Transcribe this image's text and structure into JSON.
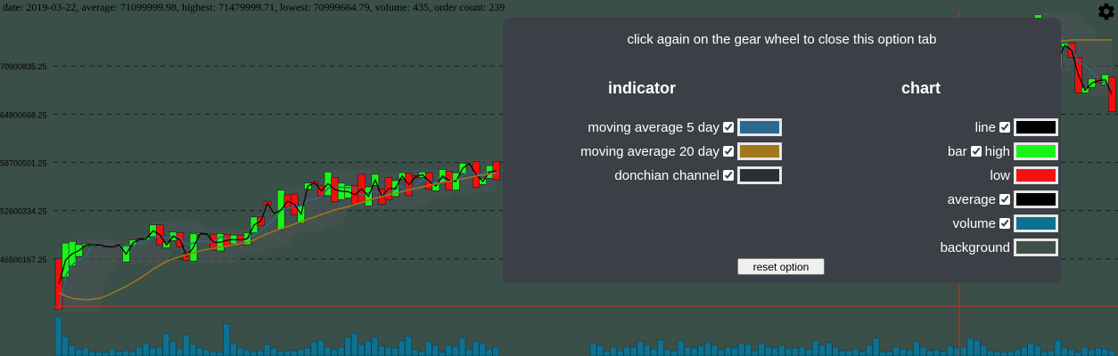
{
  "info_line": "date: 2019-03-22, average: 71099999.98, highest: 71479999.71, lowest: 70999664.79, volume: 435, order count: 239",
  "panel": {
    "title": "click again on the gear wheel to close this option tab",
    "indicator_heading": "indicator",
    "chart_heading": "chart",
    "indicators": [
      {
        "label": "moving average 5 day",
        "checked": true,
        "color": "#2a6a8c"
      },
      {
        "label": "moving average 20 day",
        "checked": true,
        "color": "#a0781e"
      },
      {
        "label": "donchian channel",
        "checked": true,
        "color": "#2b2f33"
      }
    ],
    "chart_options": [
      {
        "label": "line",
        "has_checkbox": true,
        "checked": true,
        "color": "#000000"
      },
      {
        "label": "bar",
        "has_checkbox": true,
        "checked": true,
        "sub_label": "high",
        "color": "#17f317"
      },
      {
        "label": "low",
        "has_checkbox": false,
        "color": "#f31111"
      },
      {
        "label": "average",
        "has_checkbox": true,
        "checked": true,
        "color": "#000000"
      },
      {
        "label": "volume",
        "has_checkbox": true,
        "checked": true,
        "color": "#0e7192"
      },
      {
        "label": "background",
        "has_checkbox": false,
        "color": "#3e4f48"
      }
    ],
    "reset_label": "reset option"
  },
  "colors": {
    "background": "#3a4f47",
    "up": "#1af21a",
    "down": "#f20f0f",
    "volume": "#0e7192",
    "ma5": "#2a6a8c",
    "ma20": "#a0781e",
    "donchian": "#4b5456",
    "crosshair": "#d42a1a",
    "grid": "#15201c"
  },
  "chart_data": {
    "type": "candlestick",
    "y_ticks": [
      "70900835.25",
      "64800668.25",
      "58700501.25",
      "52600334.25",
      "46500167.25"
    ],
    "y_tick_values": [
      70900835.25,
      64800668.25,
      58700501.25,
      52600334.25,
      46500167.25
    ],
    "ylim": [
      40400000,
      77000000
    ],
    "candles_left": [
      [
        46.5,
        40.1
      ],
      [
        44.2,
        48.5
      ],
      [
        45.6,
        48.7
      ],
      [
        46.8,
        48.3
      ],
      [
        48.1,
        48.4
      ],
      [
        48.3,
        48.3
      ],
      [
        48.4,
        48.2
      ],
      [
        48.2,
        48.0
      ],
      [
        48.1,
        48.0
      ],
      [
        48.2,
        48.3
      ],
      [
        46.1,
        48.1
      ],
      [
        48.1,
        48.9
      ],
      [
        49.1,
        48.9
      ],
      [
        48.9,
        49.2
      ],
      [
        49.3,
        50.8
      ],
      [
        50.8,
        48.3
      ],
      [
        47.9,
        48.6
      ],
      [
        48.8,
        49.9
      ],
      [
        49.8,
        48.0
      ],
      [
        47.3,
        46.3
      ],
      [
        46.2,
        49.7
      ],
      [
        49.6,
        49.8
      ],
      [
        49.6,
        49.7
      ],
      [
        49.6,
        47.6
      ],
      [
        47.5,
        49.7
      ],
      [
        49.6,
        48.1
      ],
      [
        48.4,
        49.5
      ],
      [
        49.5,
        48.3
      ],
      [
        48.3,
        49.8
      ],
      [
        49.8,
        51.8
      ],
      [
        51.8,
        50.7
      ],
      [
        53.8,
        53.3
      ],
      [
        52.1,
        52.3
      ],
      [
        50.2,
        55.2
      ],
      [
        54.6,
        53.0
      ],
      [
        54.7,
        52.1
      ],
      [
        51.0,
        53.3
      ],
      [
        55.3,
        56.1
      ],
      [
        56.3,
        56.0
      ],
      [
        55.8,
        54.4
      ],
      [
        54.5,
        57.5
      ],
      [
        56.8,
        53.7
      ],
      [
        54.0,
        56.1
      ],
      [
        54.2,
        55.8
      ],
      [
        55.8,
        53.4
      ],
      [
        57.2,
        53.5
      ],
      [
        53.2,
        55.6
      ],
      [
        55.8,
        57.2
      ],
      [
        55.3,
        53.4
      ],
      [
        56.8,
        54.0
      ],
      [
        54.4,
        56.4
      ],
      [
        56.6,
        57.4
      ],
      [
        57.3,
        54.5
      ],
      [
        57.0,
        56.8
      ],
      [
        56.8,
        57.5
      ],
      [
        57.4,
        55.3
      ],
      [
        55.1,
        56.3
      ],
      [
        56.2,
        57.8
      ],
      [
        57.6,
        55.2
      ],
      [
        55.2,
        57.4
      ],
      [
        57.3,
        58.6
      ],
      [
        58.6,
        58.6
      ],
      [
        58.8,
        55.5
      ],
      [
        55.9,
        56.7
      ],
      [
        56.7,
        58.3
      ],
      [
        58.8,
        56.5
      ]
    ],
    "candles_right": [
      [
        71.0,
        68.7
      ],
      [
        68.6,
        66.2
      ],
      [
        66.4,
        72.1
      ],
      [
        72.3,
        72.9
      ],
      [
        72.9,
        69.4
      ],
      [
        69.2,
        73.0
      ],
      [
        74.1,
        67.3
      ],
      [
        67.2,
        74.0
      ],
      [
        74.0,
        74.6
      ],
      [
        74.6,
        70.1
      ],
      [
        70.1,
        71.9
      ],
      [
        71.9,
        68.2
      ],
      [
        68.1,
        74.1
      ],
      [
        74.8,
        70.9
      ],
      [
        70.9,
        67.9
      ],
      [
        67.9,
        71.1
      ],
      [
        71.0,
        68.2
      ],
      [
        68.3,
        71.5
      ],
      [
        71.5,
        70.8
      ],
      [
        70.8,
        71.8
      ],
      [
        71.5,
        74.3
      ],
      [
        74.6,
        73.2
      ],
      [
        73.3,
        68.6
      ],
      [
        68.5,
        70.9
      ],
      [
        70.8,
        71.1
      ],
      [
        71.0,
        65.9
      ],
      [
        66.0,
        67.8
      ],
      [
        67.7,
        71.1
      ],
      [
        71.0,
        70.8
      ],
      [
        70.8,
        73.9
      ],
      [
        73.9,
        72.0
      ],
      [
        72.1,
        70.6
      ],
      [
        70.6,
        74.0
      ],
      [
        74.1,
        74.1
      ],
      [
        74.1,
        76.5
      ],
      [
        75.0,
        68.5
      ],
      [
        69.0,
        72.1
      ],
      [
        72.1,
        73.9
      ],
      [
        73.9,
        75.6
      ],
      [
        75.1,
        69.3
      ],
      [
        69.3,
        73.1
      ],
      [
        73.0,
        71.5
      ],
      [
        71.5,
        72.7
      ],
      [
        72.6,
        71.5
      ],
      [
        71.5,
        69.4
      ],
      [
        69.4,
        72.3
      ],
      [
        72.1,
        71.5
      ],
      [
        71.3,
        73.0
      ],
      [
        73.1,
        72.0
      ],
      [
        72.1,
        71.4
      ],
      [
        71.3,
        75.1
      ],
      [
        74.9,
        75.3
      ],
      [
        75.3,
        71.5
      ],
      [
        71.5,
        73.8
      ],
      [
        73.8,
        73.8
      ],
      [
        73.8,
        73.9
      ],
      [
        73.9,
        76.6
      ],
      [
        74.6,
        76.4
      ],
      [
        76.3,
        73.7
      ],
      [
        73.6,
        75.1
      ],
      [
        74.9,
        73.4
      ],
      [
        73.2,
        73.7
      ],
      [
        73.6,
        74.4
      ],
      [
        74.4,
        76.6
      ],
      [
        76.6,
        72.9
      ],
      [
        73.1,
        75.5
      ],
      [
        75.6,
        77.4
      ],
      [
        74.4,
        75.8
      ],
      [
        75.8,
        70.5
      ],
      [
        70.6,
        73.3
      ],
      [
        73.3,
        73.8
      ],
      [
        73.8,
        72.0
      ],
      [
        72.0,
        67.5
      ],
      [
        67.5,
        68.2
      ],
      [
        68.2,
        69.3
      ],
      [
        69.3,
        68.8
      ],
      [
        68.5,
        69.8
      ],
      [
        69.5,
        65.1
      ]
    ],
    "ma20_left": [
      42.2,
      41.8,
      41.5,
      41.4,
      41.3,
      41.4,
      41.5,
      41.8,
      42.2,
      42.6,
      43.0,
      43.5,
      44.0,
      44.6,
      45.2,
      45.7,
      46.2,
      46.5,
      46.8,
      47.0,
      47.3,
      47.5,
      47.7,
      47.8,
      48.0,
      48.1,
      48.3,
      48.4,
      48.6,
      48.9,
      49.3,
      49.7,
      50.0,
      50.3,
      50.6,
      50.9,
      51.2,
      51.5,
      51.8,
      52.1,
      52.4,
      52.7,
      52.9,
      53.1,
      53.4,
      53.6,
      53.9,
      54.2,
      54.4,
      54.6,
      54.8,
      55.0,
      55.2,
      55.4,
      55.6,
      55.8,
      56.0,
      56.2,
      56.3,
      56.5,
      56.6,
      56.8,
      57.0,
      57.1,
      57.2,
      57.3
    ],
    "ma20_right": [
      69.9,
      70.0,
      70.1,
      70.1,
      70.2,
      70.3,
      70.3,
      70.4,
      70.5,
      70.5,
      70.6,
      70.7,
      70.8,
      70.9,
      70.9,
      71.0,
      71.0,
      71.1,
      71.1,
      71.2,
      71.2,
      71.3,
      71.3,
      71.3,
      71.4,
      71.4,
      71.4,
      71.5,
      71.5,
      71.5,
      71.6,
      71.6,
      71.7,
      71.7,
      71.8,
      71.8,
      71.9,
      71.9,
      72.0,
      72.0,
      72.1,
      72.1,
      72.1,
      72.2,
      72.2,
      72.2,
      72.3,
      72.3,
      72.3,
      72.3,
      72.4,
      72.4,
      72.4,
      72.4,
      72.5,
      72.5,
      72.5,
      72.6,
      72.7,
      72.8,
      72.9,
      73.0,
      73.1,
      73.2,
      73.3,
      73.4,
      73.6,
      73.8,
      73.9,
      74.0,
      74.1,
      74.2,
      74.2,
      74.2,
      74.2,
      74.2,
      74.2,
      74.2
    ],
    "volume_left": [
      44,
      22,
      12,
      7,
      9,
      5,
      5,
      4,
      8,
      5,
      6,
      5,
      10,
      14,
      9,
      10,
      25,
      16,
      8,
      24,
      13,
      9,
      7,
      5,
      4,
      36,
      14,
      9,
      7,
      5,
      6,
      13,
      9,
      5,
      6,
      6,
      7,
      9,
      16,
      18,
      10,
      7,
      10,
      21,
      25,
      13,
      17,
      21,
      11,
      10,
      9,
      17,
      22,
      7,
      5,
      16,
      12,
      4,
      12,
      11,
      20,
      7,
      16,
      14,
      8,
      10
    ],
    "volume_right": [
      14,
      12,
      5,
      10,
      6,
      10,
      10,
      16,
      12,
      8,
      18,
      7,
      6,
      17,
      10,
      9,
      11,
      15,
      12,
      7,
      10,
      9,
      14,
      13,
      6,
      14,
      10,
      9,
      12,
      8,
      9,
      10,
      7,
      17,
      12,
      15,
      10,
      6,
      6,
      8,
      5,
      12,
      20,
      5,
      5,
      10,
      8,
      7,
      16,
      10,
      6,
      7,
      5,
      11,
      9,
      10,
      20,
      18,
      12,
      6,
      5,
      4,
      5,
      7,
      10,
      14,
      11,
      5,
      6,
      18,
      9,
      7,
      4,
      10,
      7,
      9,
      8,
      6
    ]
  }
}
